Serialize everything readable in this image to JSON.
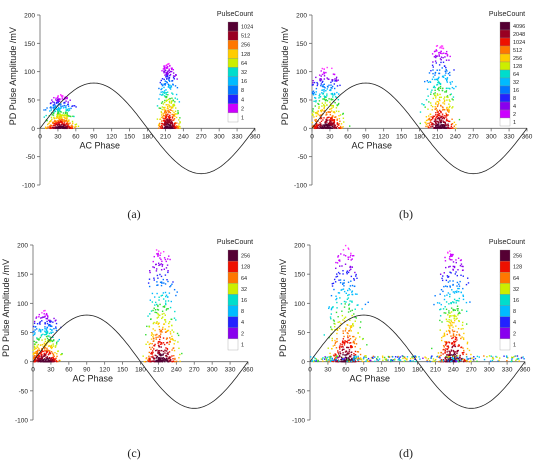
{
  "chart_data": [
    {
      "type": "scatter",
      "panel": "(a)",
      "ylabel": "PD Pulse Amplitude /mV",
      "xlabel": "AC Phase",
      "xlim": [
        0,
        360
      ],
      "ylim": [
        -100,
        200
      ],
      "x_ticks": [
        0,
        30,
        60,
        90,
        120,
        150,
        180,
        210,
        240,
        270,
        300,
        330,
        360
      ],
      "y_ticks": [
        -100,
        -50,
        0,
        50,
        100,
        150,
        200
      ],
      "legend_title": "PulseCount",
      "legend_levels": [
        "1024",
        "512",
        "256",
        "128",
        "64",
        "32",
        "16",
        "8",
        "4",
        "2",
        "1"
      ],
      "reference_curve": "sine, amplitude 80 mV",
      "clusters": [
        {
          "phase": [
            5,
            90
          ],
          "amplitude_max": 60,
          "peak_phase": 35
        },
        {
          "phase": [
            190,
            250
          ],
          "amplitude_max": 120,
          "peak_phase": 215
        }
      ]
    },
    {
      "type": "scatter",
      "panel": "(b)",
      "ylabel": "PD Pulse Amplitude /mV",
      "xlabel": "AC Phase",
      "xlim": [
        0,
        360
      ],
      "ylim": [
        -100,
        200
      ],
      "x_ticks": [
        0,
        30,
        60,
        90,
        120,
        150,
        180,
        210,
        240,
        270,
        300,
        330,
        360
      ],
      "y_ticks": [
        -100,
        -50,
        0,
        50,
        100,
        150,
        200
      ],
      "legend_title": "PulseCount",
      "legend_levels": [
        "4096",
        "2048",
        "1024",
        "512",
        "256",
        "128",
        "64",
        "32",
        "16",
        "8",
        "4",
        "2",
        "1"
      ],
      "reference_curve": "sine, amplitude 80 mV",
      "clusters": [
        {
          "phase": [
            0,
            100
          ],
          "amplitude_max": 110,
          "peak_phase": 25
        },
        {
          "phase": [
            180,
            270
          ],
          "amplitude_max": 150,
          "peak_phase": 215
        }
      ]
    },
    {
      "type": "scatter",
      "panel": "(c)",
      "ylabel": "PD Pulse Amplitude /mV",
      "xlabel": "AC Phase",
      "xlim": [
        0,
        360
      ],
      "ylim": [
        -100,
        200
      ],
      "x_ticks": [
        0,
        30,
        60,
        90,
        120,
        150,
        180,
        210,
        240,
        270,
        300,
        330,
        360
      ],
      "y_ticks": [
        -100,
        -50,
        0,
        50,
        100,
        150,
        200
      ],
      "legend_title": "PulseCount",
      "legend_levels": [
        "256",
        "128",
        "64",
        "32",
        "16",
        "8",
        "4",
        "2",
        "1"
      ],
      "reference_curve": "sine, amplitude 80 mV",
      "clusters": [
        {
          "phase": [
            0,
            90
          ],
          "amplitude_max": 90,
          "peak_phase": 20
        },
        {
          "phase": [
            175,
            270
          ],
          "amplitude_max": 200,
          "peak_phase": 215
        }
      ]
    },
    {
      "type": "scatter",
      "panel": "(d)",
      "ylabel": "PD Pulse Amplitude /mV",
      "xlabel": "AC Phase",
      "xlim": [
        0,
        360
      ],
      "ylim": [
        -100,
        200
      ],
      "x_ticks": [
        0,
        30,
        60,
        90,
        120,
        150,
        180,
        210,
        240,
        270,
        300,
        330,
        360
      ],
      "y_ticks": [
        -100,
        -50,
        0,
        50,
        100,
        150,
        200
      ],
      "legend_title": "PulseCount",
      "legend_levels": [
        "256",
        "128",
        "64",
        "32",
        "16",
        "8",
        "4",
        "2",
        "1"
      ],
      "reference_curve": "sine, amplitude 80 mV",
      "clusters": [
        {
          "phase": [
            0,
            100
          ],
          "amplitude_max": 200,
          "peak_phase": 60
        },
        {
          "phase": [
            180,
            280
          ],
          "amplitude_max": 200,
          "peak_phase": 240
        },
        {
          "phase": [
            0,
            360
          ],
          "amplitude_max": 10,
          "peak_phase": 180
        }
      ]
    }
  ],
  "captions": [
    "(a)",
    "(b)",
    "(c)",
    "(d)"
  ],
  "colors": {
    "scale": [
      "#ff33ff",
      "#cc00ff",
      "#8800ee",
      "#2222ff",
      "#0077ff",
      "#00bbff",
      "#00ddcc",
      "#33dd33",
      "#ccee00",
      "#ffcc00",
      "#ff7700",
      "#ee1100",
      "#990022",
      "#550033"
    ],
    "curve": "#222222",
    "axis": "#666666"
  }
}
